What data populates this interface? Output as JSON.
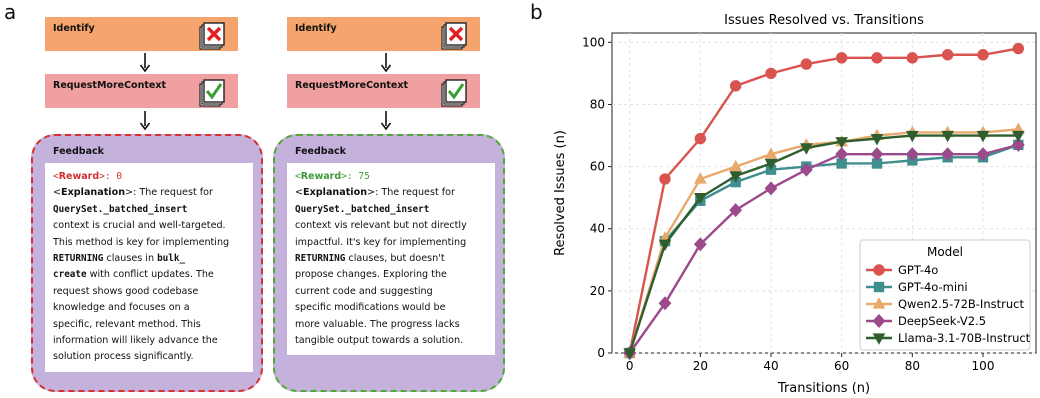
{
  "panel_a": {
    "letter": "a",
    "columns": [
      {
        "stage1": "Identify",
        "stage2": "RequestMoreContext",
        "feedback": {
          "title": "Feedback",
          "reward_open": "<",
          "reward_tag": "Reward",
          "reward_close": ">: ",
          "reward_value": "0",
          "explanation_open": "<",
          "explanation_tag": "Explanation",
          "explanation_close": ">",
          "t1": ": The request for",
          "c1": "QuerySet._batched_insert",
          "t2": "context is crucial and well-targeted.",
          "t3": "This method is key for implementing",
          "c2": "RETURNING",
          "t4": " clauses in ",
          "c3": "bulk_",
          "c4": "create",
          "t5": " with conflict updates. The",
          "t6": "request shows good codebase",
          "t7": "knowledge and focuses on a",
          "t8": "specific, relevant method. This",
          "t9": "information will likely advance the",
          "t10": "solution process significantly."
        }
      },
      {
        "stage1": "Identify",
        "stage2": "RequestMoreContext",
        "feedback": {
          "title": "Feedback",
          "reward_open": "<",
          "reward_tag": "Reward",
          "reward_close": ">: ",
          "reward_value": "75",
          "explanation_open": "<",
          "explanation_tag": "Explanation",
          "explanation_close": ">",
          "t1": ": The request for",
          "c1": "QuerySet._batched_insert",
          "t2": "context vis relevant but not directly",
          "t3": "impactful. It's key for implementing",
          "c2": "RETURNING",
          "t4": " clauses, but doesn't",
          "t5": "propose changes. Exploring the",
          "t6": "current code and suggesting",
          "t7": "specific modifications would be",
          "t8": "more valuable. The progress lacks",
          "t9": "tangible output towards a solution."
        }
      }
    ]
  },
  "panel_b": {
    "letter": "b"
  },
  "chart_data": {
    "type": "line",
    "title": "Issues Resolved vs. Transitions",
    "xlabel": "Transitions (n)",
    "ylabel": "Resolved Issues (n)",
    "xlim": [
      -5,
      115
    ],
    "ylim": [
      0,
      103
    ],
    "xticks": [
      0,
      20,
      40,
      60,
      80,
      100
    ],
    "yticks": [
      0,
      20,
      40,
      60,
      80,
      100
    ],
    "grid": true,
    "legend_title": "Model",
    "legend_position": "lower-right",
    "x": [
      0,
      10,
      20,
      30,
      40,
      50,
      60,
      70,
      80,
      90,
      100,
      110
    ],
    "series": [
      {
        "name": "GPT-4o",
        "color": "#d9534f",
        "marker": "circle",
        "values": [
          0,
          56,
          69,
          86,
          90,
          93,
          95,
          95,
          95,
          96,
          96,
          98
        ]
      },
      {
        "name": "GPT-4o-mini",
        "color": "#3f8f8f",
        "marker": "square",
        "values": [
          0,
          36,
          49,
          55,
          59,
          60,
          61,
          61,
          62,
          63,
          63,
          67
        ]
      },
      {
        "name": "Qwen2.5-72B-Instruct",
        "color": "#e8a96a",
        "marker": "triangle-up",
        "values": [
          0,
          37,
          56,
          60,
          64,
          67,
          68,
          70,
          71,
          71,
          71,
          72
        ]
      },
      {
        "name": "DeepSeek-V2.5",
        "color": "#9b4a8b",
        "marker": "diamond",
        "values": [
          0,
          16,
          35,
          46,
          53,
          59,
          64,
          64,
          64,
          64,
          64,
          67
        ]
      },
      {
        "name": "Llama-3.1-70B-Instruct",
        "color": "#2e5e2e",
        "marker": "triangle-down",
        "values": [
          0,
          35,
          50,
          57,
          61,
          66,
          68,
          69,
          70,
          70,
          70,
          70
        ]
      }
    ]
  }
}
